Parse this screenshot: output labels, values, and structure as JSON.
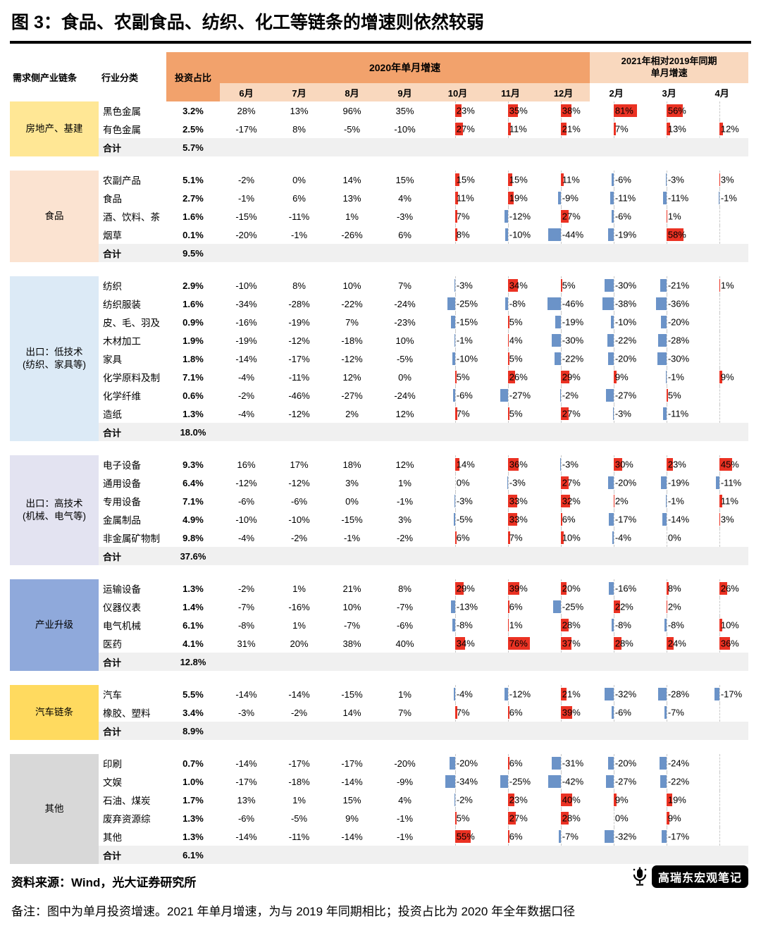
{
  "footer": {
    "source": "资料来源：Wind，光大证券研究所",
    "note": "备注：图中为单月投资增速。2021 年单月增速，为与 2019 年同期相比；投资占比为 2020 年全年数据口径",
    "watermark": "高瑞东宏观笔记"
  },
  "chart_data": {
    "type": "table",
    "title": "图 3：食品、农副食品、纺织、化工等链条的增速则依然较弱",
    "header": {
      "chain": "需求侧产业链条",
      "industry": "行业分类",
      "share": "投资占比",
      "band_2020": "2020年单月增速",
      "band_2021": "2021年相对2019年同期\n单月增速",
      "months": [
        "6月",
        "7月",
        "8月",
        "9月",
        "10月",
        "11月",
        "12月",
        "2月",
        "3月",
        "4月"
      ]
    },
    "colors": {
      "header_2020_bg": "#F2A26C",
      "header_2021_bg": "#F9D8BE",
      "months_2020_bg": "#F9D8BE",
      "bar_positive": "#EB3223",
      "bar_negative": "#6B93C8",
      "total_row_bg": "#F0F0F0"
    },
    "total_label": "合计",
    "groups": [
      {
        "name": "房地产、基建",
        "bg": "#FFE795",
        "rows": [
          {
            "industry": "黑色金属",
            "share": "3.2%",
            "values": [
              "28%",
              "13%",
              "96%",
              "35%",
              "23%",
              "35%",
              "38%",
              "81%",
              "56%",
              ""
            ]
          },
          {
            "industry": "有色金属",
            "share": "2.5%",
            "values": [
              "-17%",
              "8%",
              "-5%",
              "-10%",
              "27%",
              "11%",
              "21%",
              "7%",
              "13%",
              "12%"
            ]
          }
        ],
        "total": "5.7%"
      },
      {
        "name": "食品",
        "bg": "#FBE3D1",
        "rows": [
          {
            "industry": "农副产品",
            "share": "5.1%",
            "values": [
              "-2%",
              "0%",
              "14%",
              "15%",
              "15%",
              "15%",
              "11%",
              "-6%",
              "-3%",
              "3%"
            ]
          },
          {
            "industry": "食品",
            "share": "2.7%",
            "values": [
              "-1%",
              "6%",
              "13%",
              "4%",
              "11%",
              "19%",
              "-9%",
              "-11%",
              "-11%",
              "-1%"
            ]
          },
          {
            "industry": "酒、饮料、茶",
            "share": "1.6%",
            "values": [
              "-15%",
              "-11%",
              "1%",
              "-3%",
              "7%",
              "-12%",
              "27%",
              "-6%",
              "1%",
              ""
            ]
          },
          {
            "industry": "烟草",
            "share": "0.1%",
            "values": [
              "-20%",
              "-1%",
              "-26%",
              "6%",
              "8%",
              "-10%",
              "-44%",
              "-19%",
              "58%",
              ""
            ]
          }
        ],
        "total": "9.5%"
      },
      {
        "name": "出口：低技术\n(纺织、家具等)",
        "bg": "#DCEAF6",
        "rows": [
          {
            "industry": "纺织",
            "share": "2.9%",
            "values": [
              "-10%",
              "8%",
              "10%",
              "7%",
              "-3%",
              "34%",
              "5%",
              "-30%",
              "-21%",
              "1%"
            ]
          },
          {
            "industry": "纺织服装",
            "share": "1.6%",
            "values": [
              "-34%",
              "-28%",
              "-22%",
              "-24%",
              "-25%",
              "-8%",
              "-46%",
              "-38%",
              "-36%",
              ""
            ]
          },
          {
            "industry": "皮、毛、羽及",
            "share": "0.9%",
            "values": [
              "-16%",
              "-19%",
              "7%",
              "-23%",
              "-15%",
              "5%",
              "-19%",
              "-10%",
              "-20%",
              ""
            ]
          },
          {
            "industry": "木材加工",
            "share": "1.9%",
            "values": [
              "-19%",
              "-12%",
              "-18%",
              "10%",
              "-1%",
              "4%",
              "-30%",
              "-22%",
              "-28%",
              ""
            ]
          },
          {
            "industry": "家具",
            "share": "1.8%",
            "values": [
              "-14%",
              "-17%",
              "-12%",
              "-5%",
              "-10%",
              "5%",
              "-22%",
              "-20%",
              "-30%",
              ""
            ]
          },
          {
            "industry": "化学原料及制",
            "share": "7.1%",
            "values": [
              "-4%",
              "-11%",
              "12%",
              "0%",
              "5%",
              "26%",
              "29%",
              "9%",
              "-1%",
              "9%"
            ]
          },
          {
            "industry": "化学纤维",
            "share": "0.6%",
            "values": [
              "-2%",
              "-46%",
              "-27%",
              "-24%",
              "-6%",
              "-27%",
              "-2%",
              "-27%",
              "5%",
              ""
            ]
          },
          {
            "industry": "造纸",
            "share": "1.3%",
            "values": [
              "-4%",
              "-12%",
              "2%",
              "12%",
              "7%",
              "5%",
              "27%",
              "-3%",
              "-11%",
              ""
            ]
          }
        ],
        "total": "18.0%"
      },
      {
        "name": "出口：高技术\n(机械、电气等)",
        "bg": "#E3E3F1",
        "rows": [
          {
            "industry": "电子设备",
            "share": "9.3%",
            "values": [
              "16%",
              "17%",
              "18%",
              "12%",
              "14%",
              "36%",
              "-3%",
              "30%",
              "23%",
              "45%"
            ]
          },
          {
            "industry": "通用设备",
            "share": "6.4%",
            "values": [
              "-12%",
              "-12%",
              "3%",
              "1%",
              "0%",
              "-3%",
              "27%",
              "-20%",
              "-19%",
              "-11%"
            ]
          },
          {
            "industry": "专用设备",
            "share": "7.1%",
            "values": [
              "-6%",
              "-6%",
              "0%",
              "-1%",
              "-3%",
              "33%",
              "32%",
              "2%",
              "-1%",
              "11%"
            ]
          },
          {
            "industry": "金属制品",
            "share": "4.9%",
            "values": [
              "-10%",
              "-10%",
              "-15%",
              "3%",
              "-5%",
              "33%",
              "6%",
              "-17%",
              "-14%",
              "3%"
            ]
          },
          {
            "industry": "非金属矿物制",
            "share": "9.8%",
            "values": [
              "-4%",
              "-2%",
              "-1%",
              "-2%",
              "6%",
              "7%",
              "10%",
              "-4%",
              "0%",
              ""
            ]
          }
        ],
        "total": "37.6%"
      },
      {
        "name": "产业升级",
        "bg": "#8FA9DB",
        "rows": [
          {
            "industry": "运输设备",
            "share": "1.3%",
            "values": [
              "-2%",
              "1%",
              "21%",
              "8%",
              "29%",
              "39%",
              "20%",
              "-16%",
              "8%",
              "26%"
            ]
          },
          {
            "industry": "仪器仪表",
            "share": "1.4%",
            "values": [
              "-7%",
              "-16%",
              "10%",
              "-7%",
              "-13%",
              "6%",
              "-25%",
              "22%",
              "2%",
              ""
            ]
          },
          {
            "industry": "电气机械",
            "share": "6.1%",
            "values": [
              "-8%",
              "1%",
              "-7%",
              "-6%",
              "-8%",
              "1%",
              "28%",
              "-8%",
              "-8%",
              "10%"
            ]
          },
          {
            "industry": "医药",
            "share": "4.1%",
            "values": [
              "31%",
              "20%",
              "38%",
              "40%",
              "34%",
              "76%",
              "37%",
              "28%",
              "24%",
              "36%"
            ]
          }
        ],
        "total": "12.8%"
      },
      {
        "name": "汽车链条",
        "bg": "#FFDA5F",
        "rows": [
          {
            "industry": "汽车",
            "share": "5.5%",
            "values": [
              "-14%",
              "-14%",
              "-15%",
              "1%",
              "-4%",
              "-12%",
              "21%",
              "-32%",
              "-28%",
              "-17%"
            ]
          },
          {
            "industry": "橡胶、塑料",
            "share": "3.4%",
            "values": [
              "-3%",
              "-2%",
              "14%",
              "7%",
              "7%",
              "6%",
              "39%",
              "-6%",
              "-7%",
              ""
            ]
          }
        ],
        "total": "8.9%"
      },
      {
        "name": "其他",
        "bg": "#D8D8D8",
        "rows": [
          {
            "industry": "印刷",
            "share": "0.7%",
            "values": [
              "-14%",
              "-17%",
              "-17%",
              "-20%",
              "-20%",
              "6%",
              "-31%",
              "-20%",
              "-24%",
              ""
            ]
          },
          {
            "industry": "文娱",
            "share": "1.0%",
            "values": [
              "-17%",
              "-18%",
              "-14%",
              "-9%",
              "-34%",
              "-25%",
              "-42%",
              "-27%",
              "-22%",
              ""
            ]
          },
          {
            "industry": "石油、煤炭",
            "share": "1.7%",
            "values": [
              "13%",
              "1%",
              "15%",
              "4%",
              "-2%",
              "23%",
              "40%",
              "9%",
              "19%",
              ""
            ]
          },
          {
            "industry": "废弃资源综",
            "share": "1.3%",
            "values": [
              "-6%",
              "-5%",
              "9%",
              "-1%",
              "5%",
              "27%",
              "28%",
              "0%",
              "9%",
              ""
            ]
          },
          {
            "industry": "其他",
            "share": "1.3%",
            "values": [
              "-14%",
              "-11%",
              "-14%",
              "-1%",
              "55%",
              "6%",
              "-7%",
              "-32%",
              "-17%",
              ""
            ]
          }
        ],
        "total": "6.1%"
      }
    ]
  }
}
